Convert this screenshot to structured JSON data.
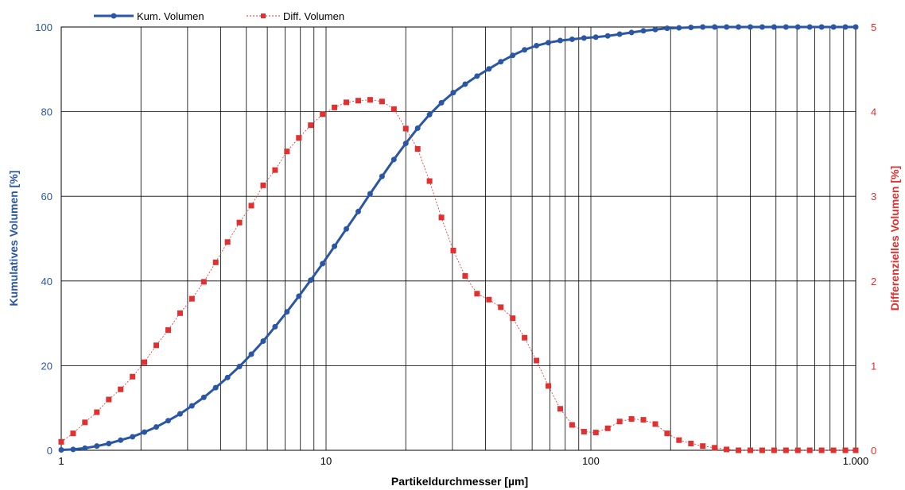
{
  "chart_data": {
    "type": "line",
    "xlabel": "Partikeldurchmesser [µm]",
    "ylabel_left": "Kumulatives Volumen [%]",
    "ylabel_right": "Differenzielles Volumen [%]",
    "x_scale": "log",
    "xlim": [
      1,
      1000
    ],
    "ylim_left": [
      0,
      100
    ],
    "ylim_right": [
      0,
      5
    ],
    "x_ticks": [
      1,
      10,
      100,
      1000
    ],
    "x_tick_labels": [
      "1",
      "10",
      "100",
      "1.000"
    ],
    "y_left_ticks": [
      0,
      20,
      40,
      60,
      80,
      100
    ],
    "y_left_tick_labels": [
      "0",
      "20",
      "40",
      "60",
      "80",
      "100"
    ],
    "y_right_ticks": [
      0,
      1,
      2,
      3,
      4,
      5
    ],
    "y_right_tick_labels": [
      "0",
      "1",
      "2",
      "3",
      "4",
      "5"
    ],
    "grid": "vertical log gridlines, horizontal gridlines",
    "legend_position": "top-left",
    "colors": {
      "kum": "#2a56a4",
      "diff": "#e03030",
      "grid": "#000000",
      "left_axis": "#2a56a4",
      "right_axis": "#e03030"
    },
    "x": [
      1.0,
      1.109,
      1.229,
      1.363,
      1.512,
      1.676,
      1.859,
      2.061,
      2.285,
      2.534,
      2.81,
      3.115,
      3.455,
      3.83,
      4.247,
      4.709,
      5.222,
      5.79,
      6.42,
      7.118,
      7.893,
      8.752,
      9.705,
      10.76,
      11.93,
      13.23,
      14.67,
      16.27,
      18.04,
      20.0,
      22.18,
      24.59,
      27.27,
      30.23,
      33.52,
      37.17,
      41.22,
      45.7,
      50.68,
      56.19,
      62.31,
      69.09,
      76.61,
      84.94,
      94.19,
      104.4,
      115.8,
      128.4,
      142.4,
      157.9,
      175.1,
      194.1,
      215.2,
      238.7,
      264.6,
      293.4,
      325.4,
      360.8,
      400.0,
      443.6,
      491.8,
      545.4,
      604.7,
      670.5,
      743.5,
      824.4,
      914.2,
      1000.0
    ],
    "series": [
      {
        "name": "Kum. Volumen",
        "axis": "left",
        "marker": "circle",
        "values": [
          0.1,
          0.2,
          0.5,
          1.0,
          1.6,
          2.4,
          3.2,
          4.3,
          5.5,
          7.0,
          8.6,
          10.5,
          12.5,
          14.8,
          17.2,
          19.8,
          22.7,
          25.8,
          29.2,
          32.7,
          36.4,
          40.2,
          44.1,
          48.2,
          52.3,
          56.4,
          60.6,
          64.7,
          68.7,
          72.5,
          76.1,
          79.3,
          82.1,
          84.5,
          86.5,
          88.4,
          90.1,
          91.8,
          93.3,
          94.6,
          95.6,
          96.3,
          96.8,
          97.1,
          97.4,
          97.6,
          97.9,
          98.3,
          98.7,
          99.1,
          99.4,
          99.7,
          99.8,
          99.9,
          100.0,
          100.0,
          100.0,
          100.0,
          100.0,
          100.0,
          100.0,
          100.0,
          100.0,
          100.0,
          100.0,
          100.0,
          100.0,
          100.0
        ]
      },
      {
        "name": "Diff. Volumen",
        "axis": "right",
        "marker": "square",
        "values": [
          0.1,
          0.2,
          0.33,
          0.45,
          0.6,
          0.72,
          0.87,
          1.04,
          1.24,
          1.42,
          1.62,
          1.79,
          1.99,
          2.22,
          2.46,
          2.69,
          2.89,
          3.13,
          3.31,
          3.53,
          3.69,
          3.84,
          3.97,
          4.05,
          4.11,
          4.13,
          4.14,
          4.12,
          4.03,
          3.8,
          3.56,
          3.18,
          2.75,
          2.36,
          2.06,
          1.85,
          1.78,
          1.69,
          1.56,
          1.33,
          1.06,
          0.76,
          0.49,
          0.3,
          0.22,
          0.21,
          0.26,
          0.34,
          0.37,
          0.36,
          0.31,
          0.2,
          0.12,
          0.08,
          0.05,
          0.03,
          0.01,
          0.0,
          0.0,
          0.0,
          0.0,
          0.0,
          0.0,
          0.0,
          0.0,
          0.0,
          0.0,
          0.0
        ]
      }
    ]
  }
}
